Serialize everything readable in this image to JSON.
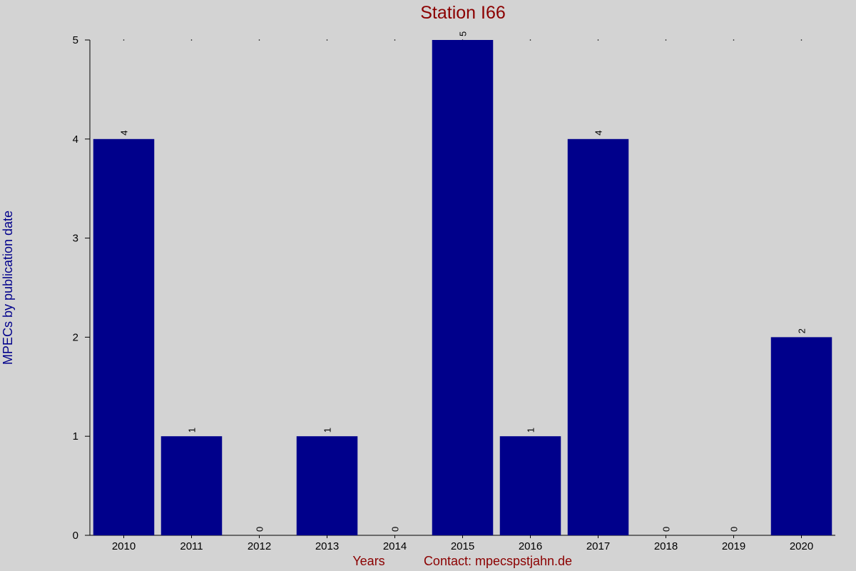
{
  "chart_data": {
    "type": "bar",
    "title": "Station I66",
    "ylabel": "MPECs by publication date",
    "xlabel": "Years",
    "contact": "Contact: mpecspstjahn.de",
    "categories": [
      "2010",
      "2011",
      "2012",
      "2013",
      "2014",
      "2015",
      "2016",
      "2017",
      "2018",
      "2019",
      "2020"
    ],
    "values": [
      4,
      1,
      0,
      1,
      0,
      5,
      1,
      4,
      0,
      0,
      2
    ],
    "ylim": [
      0,
      5
    ],
    "yticks": [
      "0",
      "1",
      "2",
      "3",
      "4",
      "5"
    ],
    "bar_color": "#00008b",
    "background": "#d3d3d3",
    "title_color": "#8b0000",
    "ylabel_color": "#00008b",
    "grid": false
  }
}
